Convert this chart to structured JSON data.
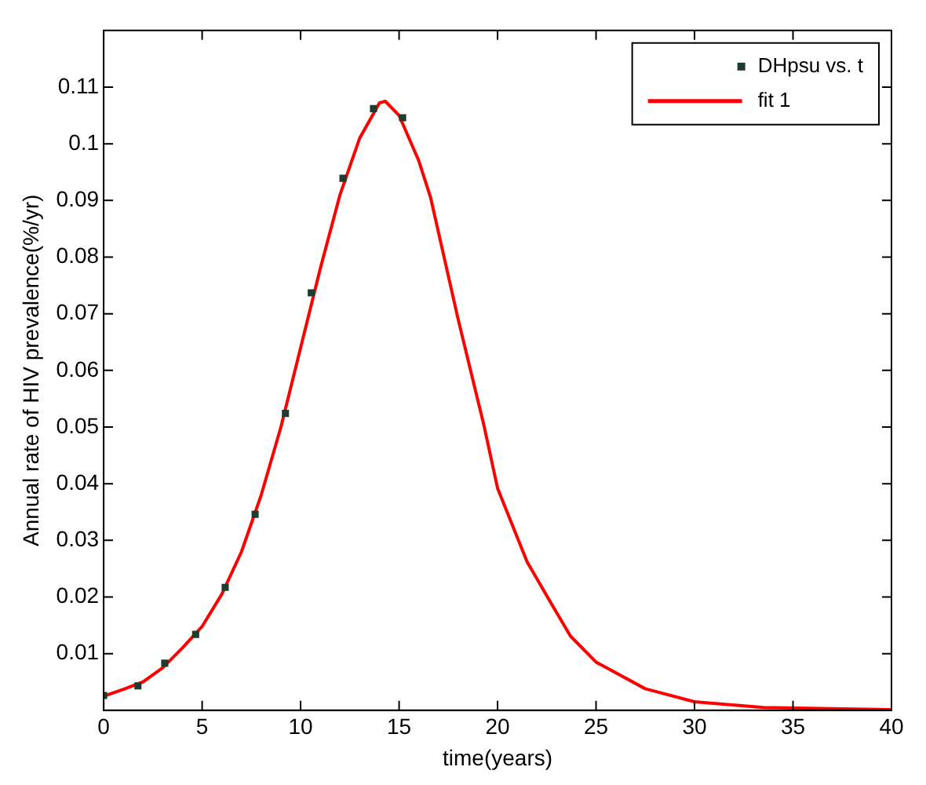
{
  "chart_data": {
    "type": "scatter",
    "xlabel": "time(years)",
    "ylabel": "Annual rate of HIV prevalence(%/yr)",
    "xlim": [
      0,
      40
    ],
    "xticks": [
      0,
      5,
      10,
      15,
      20,
      25,
      30,
      35,
      40
    ],
    "ylim": [
      0,
      0.12
    ],
    "yticks": [
      0.01,
      0.02,
      0.03,
      0.04,
      0.05,
      0.06,
      0.07,
      0.08,
      0.09,
      0.1,
      0.11
    ],
    "grid": false,
    "legend": "top right",
    "series": [
      {
        "name": "DHpsu vs. t",
        "marker": "square",
        "color": "#1f3d2e",
        "x": [
          0,
          1.74,
          3.1,
          4.67,
          6.17,
          7.69,
          9.23,
          10.54,
          12.15,
          13.7,
          15.18
        ],
        "values": [
          0.0026,
          0.0043,
          0.0083,
          0.0134,
          0.0217,
          0.0346,
          0.0524,
          0.0737,
          0.0939,
          0.1062,
          0.1046
        ]
      },
      {
        "name": "fit 1",
        "type": "line",
        "marker": "none",
        "line_style": "solid",
        "color": "#ff0000",
        "x": [
          0,
          1,
          2,
          3,
          4,
          5,
          6,
          7,
          8,
          9,
          10,
          11,
          12,
          13,
          14,
          14.3,
          15,
          16,
          16.6,
          18,
          19.3,
          20,
          21.5,
          22.9,
          23.7,
          25,
          27.5,
          30,
          33.5,
          40
        ],
        "values": [
          0.0025,
          0.0037,
          0.005,
          0.0075,
          0.011,
          0.0148,
          0.0205,
          0.028,
          0.038,
          0.05,
          0.064,
          0.078,
          0.091,
          0.101,
          0.1072,
          0.1075,
          0.105,
          0.097,
          0.0905,
          0.069,
          0.0504,
          0.0392,
          0.0262,
          0.0178,
          0.0131,
          0.0085,
          0.0038,
          0.0015,
          0.0005,
          0.0001
        ]
      }
    ]
  }
}
